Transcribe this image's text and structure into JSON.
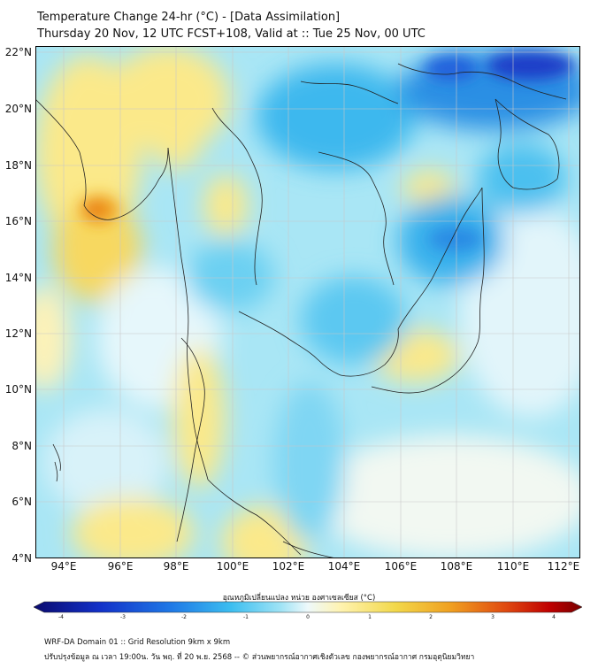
{
  "header": {
    "title_line1": "Temperature Change 24-hr (°C) - [Data Assimilation]",
    "title_line2": "Thursday 20 Nov, 12 UTC FCST+108, Valid at :: Tue 25 Nov, 00 UTC"
  },
  "axes": {
    "lat_labels": [
      "22°N",
      "20°N",
      "18°N",
      "16°N",
      "14°N",
      "12°N",
      "10°N",
      "8°N",
      "6°N",
      "4°N"
    ],
    "lon_labels": [
      "94°E",
      "96°E",
      "98°E",
      "100°E",
      "102°E",
      "104°E",
      "106°E",
      "108°E",
      "110°E",
      "112°E"
    ]
  },
  "colorbar": {
    "label": "อุณหภูมิเปลี่ยนแปลง หน่วย องศาเซลเซียส (°C)",
    "ticks": [
      "-4",
      "-3",
      "-2",
      "-1",
      "0",
      "1",
      "2",
      "3",
      "4"
    ],
    "min": -4,
    "max": 4,
    "colors": [
      "#0a0a6e",
      "#1230c8",
      "#1e78e6",
      "#3cbef0",
      "#9fe3f5",
      "#eef9fb",
      "#fff3b0",
      "#f2d84a",
      "#f0a020",
      "#e04a10",
      "#c00000",
      "#780000"
    ]
  },
  "footer": {
    "line1": "WRF-DA Domain 01 :: Grid Resolution 9km x 9km",
    "line2": "ปรับปรุงข้อมูล ณ เวลา 19:00น. วัน พฤ. ที่ 20 พ.ย. 2568 -- © ส่วนพยากรณ์อากาศเชิงตัวเลข กองพยากรณ์อากาศ กรมอุตุนิยมวิทยา"
  }
}
